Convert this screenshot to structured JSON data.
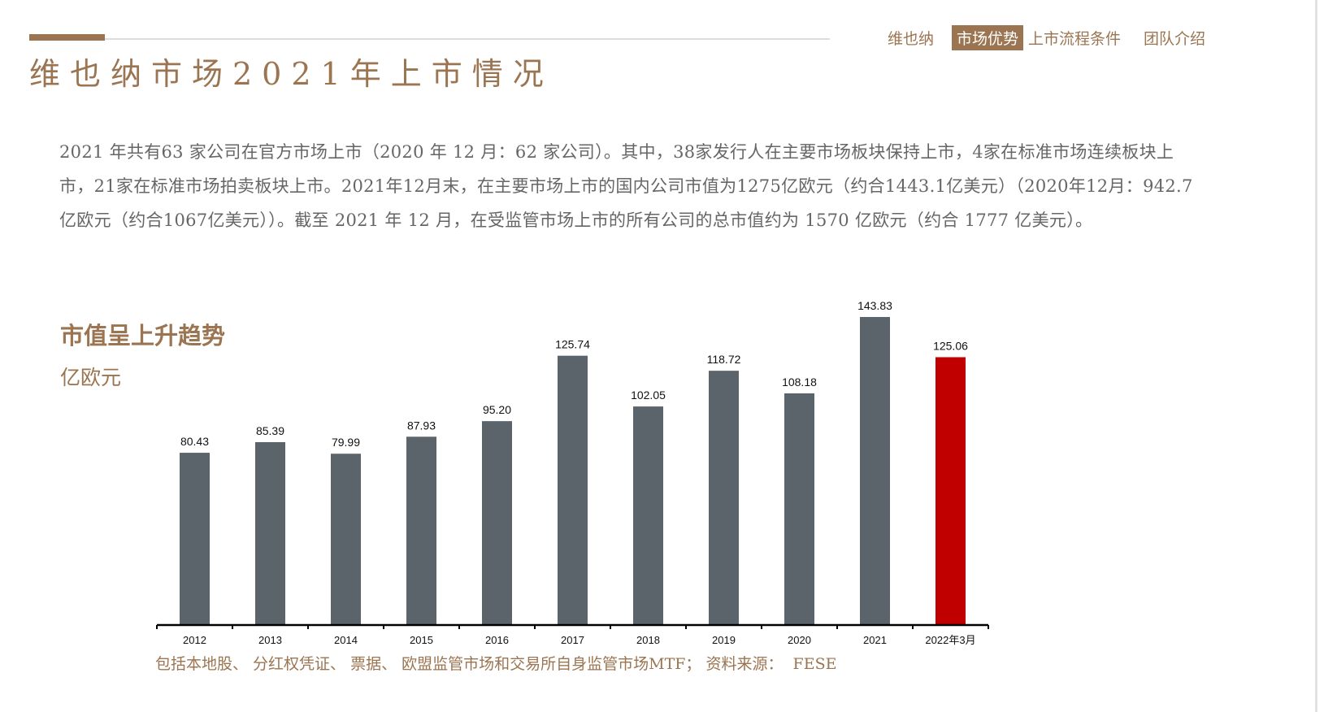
{
  "header": {
    "title": "维也纳市场2021年上市情况",
    "nav": [
      {
        "label": "维也纳",
        "active": false
      },
      {
        "label": "市场优势",
        "active": true
      },
      {
        "label": "上市流程条件",
        "active": false
      },
      {
        "label": "团队介绍",
        "active": false
      }
    ]
  },
  "intro": "2021 年共有63 家公司在官方市场上市（2020 年 12 月：62 家公司）。其中，38家发行人在主要市场板块保持上市，4家在标准市场连续板块上市，21家在标准市场拍卖板块上市。2021年12月末，在主要市场上市的国内公司市值为1275亿欧元（约合1443.1亿美元）（2020年12月：942.7亿欧元（约合1067亿美元））。截至 2021 年 12 月，在受监管市场上市的所有公司的总市值约为 1570 亿欧元（约合 1777 亿美元）。",
  "chart_section": {
    "heading": "市值呈上升趋势",
    "unit": "亿欧元"
  },
  "footnote": "包括本地股、 分红权凭证、 票据、 欧盟监管市场和交易所自身监管市场MTF； 资料来源：  FESE",
  "colors": {
    "accent": "#9b7551",
    "bar": "#5b636b",
    "highlight": "#c00000"
  },
  "chart_data": {
    "type": "bar",
    "categories": [
      "2012",
      "2013",
      "2014",
      "2015",
      "2016",
      "2017",
      "2018",
      "2019",
      "2020",
      "2021",
      "2022年3月"
    ],
    "values": [
      80.43,
      85.39,
      79.99,
      87.93,
      95.2,
      125.74,
      102.05,
      118.72,
      108.18,
      143.83,
      125.06
    ],
    "value_labels": [
      "80.43",
      "85.39",
      "79.99",
      "87.93",
      "95.20",
      "125.74",
      "102.05",
      "118.72",
      "108.18",
      "143.83",
      "125.06"
    ],
    "highlight_category": "2022年3月",
    "title": "市值呈上升趋势",
    "ylabel": "亿欧元",
    "ylim": [
      0,
      143.83
    ],
    "grid": false,
    "legend": "none"
  }
}
